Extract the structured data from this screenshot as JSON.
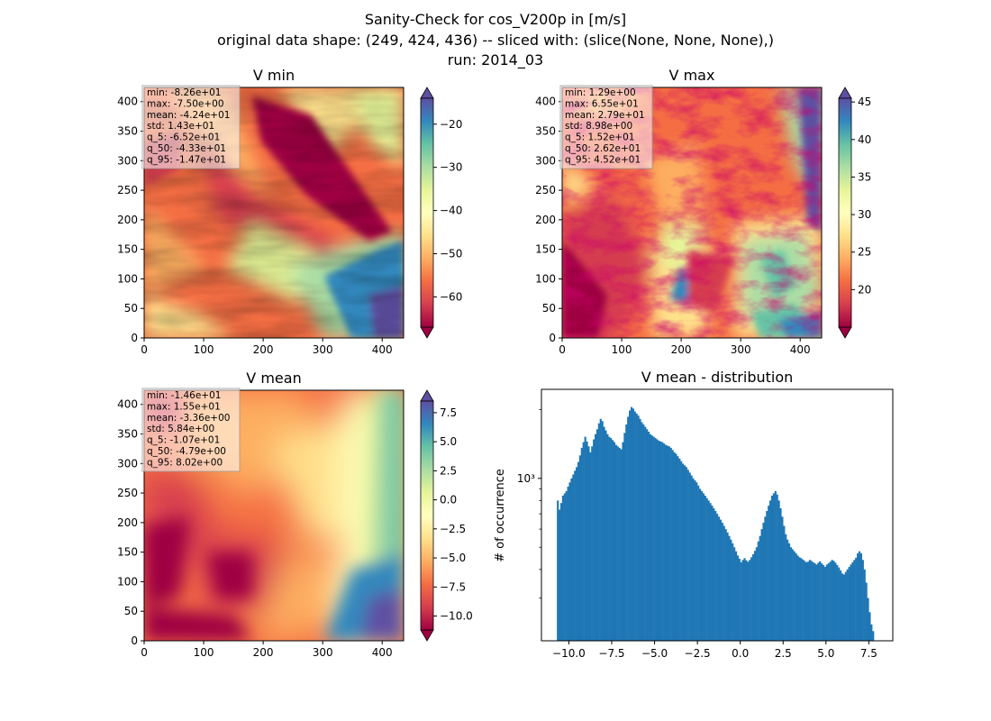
{
  "figure": {
    "title_lines": [
      "Sanity-Check for cos_V200p in [m/s]",
      "original data shape: (249, 424, 436) -- sliced with: (slice(None, None, None),)",
      "run: 2014_03"
    ]
  },
  "colors": {
    "colormap": "Spectral",
    "histogram_bar": "#1f77b4",
    "stats_box_bg": "#ffffff",
    "stats_box_border": "#999999"
  },
  "chart_data": [
    {
      "type": "heatmap",
      "title": "V min",
      "xlim": [
        0,
        436
      ],
      "ylim": [
        0,
        424
      ],
      "xticks": [
        0,
        100,
        200,
        300,
        400
      ],
      "yticks": [
        0,
        50,
        100,
        150,
        200,
        250,
        300,
        350,
        400
      ],
      "colorbar": {
        "range": [
          -67,
          -14
        ],
        "ticks": [
          -60,
          -50,
          -40,
          -30,
          -20
        ],
        "extend": "both"
      },
      "stats": [
        "min: -8.26e+01",
        "max: -7.50e+00",
        "mean: -4.24e+01",
        "std: 1.43e+01",
        "q_5: -6.52e+01",
        "q_50: -4.33e+01",
        "q_95: -1.47e+01"
      ],
      "stats_placement": "top-left"
    },
    {
      "type": "heatmap",
      "title": "V max",
      "xlim": [
        0,
        436
      ],
      "ylim": [
        0,
        424
      ],
      "xticks": [
        0,
        100,
        200,
        300,
        400
      ],
      "yticks": [
        0,
        50,
        100,
        150,
        200,
        250,
        300,
        350,
        400
      ],
      "colorbar": {
        "range": [
          15,
          45.5
        ],
        "ticks": [
          20,
          25,
          30,
          35,
          40,
          45
        ],
        "extend": "both"
      },
      "stats": [
        "min: 1.29e+00",
        "max: 6.55e+01",
        "mean: 2.79e+01",
        "std: 8.98e+00",
        "q_5: 1.52e+01",
        "q_50: 2.62e+01",
        "q_95: 4.52e+01"
      ],
      "stats_placement": "top-left"
    },
    {
      "type": "heatmap",
      "title": "V mean",
      "xlim": [
        0,
        436
      ],
      "ylim": [
        0,
        424
      ],
      "xticks": [
        0,
        100,
        200,
        300,
        400
      ],
      "yticks": [
        0,
        50,
        100,
        150,
        200,
        250,
        300,
        350,
        400
      ],
      "colorbar": {
        "range": [
          -11.2,
          8.5
        ],
        "ticks": [
          -10.0,
          -7.5,
          -5.0,
          -2.5,
          0.0,
          2.5,
          5.0,
          7.5
        ],
        "tick_labels": [
          "−10.0",
          "−7.5",
          "−5.0",
          "−2.5",
          "0.0",
          "2.5",
          "5.0",
          "7.5"
        ],
        "extend": "both"
      },
      "stats": [
        "min: -1.46e+01",
        "max: 1.55e+01",
        "mean: -3.36e+00",
        "std: 5.84e+00",
        "q_5: -1.07e+01",
        "q_50: -4.79e+00",
        "q_95: 8.02e+00"
      ],
      "stats_placement": "top-left"
    },
    {
      "type": "bar",
      "title": "V mean - distribution",
      "xlabel": "",
      "ylabel": "# of occurrence",
      "yscale": "log",
      "xlim": [
        -11.6,
        8.9
      ],
      "ylim": [
        195,
        2450
      ],
      "xticks": [
        -10.0,
        -7.5,
        -5.0,
        -2.5,
        0.0,
        2.5,
        5.0,
        7.5
      ],
      "xtick_labels": [
        "−10.0",
        "−7.5",
        "−5.0",
        "−2.5",
        "0.0",
        "2.5",
        "5.0",
        "7.5"
      ],
      "ytick_major": [
        1000
      ],
      "ytick_major_labels": [
        "10³"
      ],
      "ytick_minor": [
        300,
        400,
        500,
        600,
        700,
        800,
        900,
        2000
      ],
      "bin_width": 0.1,
      "bin_start": -10.7,
      "counts": [
        800,
        730,
        780,
        840,
        860,
        880,
        920,
        960,
        1000,
        1040,
        1080,
        1120,
        1180,
        1260,
        1360,
        1440,
        1520,
        1450,
        1380,
        1300,
        1380,
        1480,
        1560,
        1640,
        1740,
        1820,
        1780,
        1680,
        1620,
        1560,
        1520,
        1500,
        1470,
        1440,
        1400,
        1380,
        1360,
        1340,
        1440,
        1580,
        1720,
        1860,
        1980,
        2050,
        2020,
        1960,
        1920,
        1880,
        1820,
        1760,
        1720,
        1680,
        1640,
        1600,
        1560,
        1540,
        1520,
        1500,
        1480,
        1460,
        1450,
        1440,
        1420,
        1400,
        1390,
        1380,
        1360,
        1330,
        1300,
        1280,
        1250,
        1220,
        1190,
        1160,
        1140,
        1120,
        1090,
        1060,
        1030,
        1000,
        980,
        960,
        930,
        900,
        880,
        860,
        840,
        820,
        800,
        780,
        760,
        740,
        720,
        700,
        680,
        660,
        640,
        620,
        600,
        580,
        560,
        540,
        520,
        500,
        480,
        460,
        445,
        430,
        440,
        448,
        438,
        432,
        440,
        452,
        466,
        482,
        500,
        530,
        560,
        600,
        640,
        680,
        720,
        760,
        800,
        840,
        860,
        880,
        850,
        800,
        740,
        680,
        620,
        570,
        540,
        520,
        500,
        490,
        480,
        470,
        460,
        452,
        448,
        442,
        436,
        430,
        432,
        440,
        436,
        430,
        425,
        420,
        428,
        434,
        425,
        418,
        410,
        420,
        426,
        432,
        440,
        436,
        428,
        418,
        408,
        396,
        384,
        380,
        390,
        400,
        410,
        420,
        430,
        440,
        450,
        470,
        480,
        470,
        440,
        400,
        350,
        300,
        260,
        230,
        215
      ]
    }
  ]
}
